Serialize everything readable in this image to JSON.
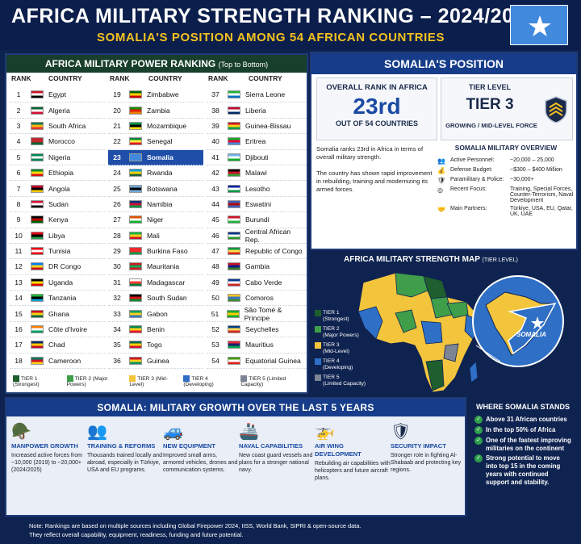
{
  "header": {
    "title": "AFRICA MILITARY STRENGTH RANKING – 2024/2025",
    "subtitle": "SOMALIA'S POSITION AMONG 54 AFRICAN COUNTRIES"
  },
  "ranking": {
    "title": "AFRICA MILITARY POWER RANKING",
    "title_note": "(Top to Bottom)",
    "rank_header": "RANK",
    "country_header": "COUNTRY",
    "columns": [
      [
        {
          "rank": "1",
          "country": "Egypt",
          "colors": [
            "#ce1126",
            "#fff",
            "#000"
          ]
        },
        {
          "rank": "2",
          "country": "Algeria",
          "colors": [
            "#006233",
            "#fff",
            "#d21034"
          ]
        },
        {
          "rank": "3",
          "country": "South Africa",
          "colors": [
            "#007a4d",
            "#ffb612",
            "#de3831"
          ]
        },
        {
          "rank": "4",
          "country": "Morocco",
          "colors": [
            "#c1272d",
            "#c1272d",
            "#006233"
          ]
        },
        {
          "rank": "5",
          "country": "Nigeria",
          "colors": [
            "#008751",
            "#fff",
            "#008751"
          ]
        },
        {
          "rank": "6",
          "country": "Ethiopia",
          "colors": [
            "#078930",
            "#fcdd09",
            "#da121a"
          ]
        },
        {
          "rank": "7",
          "country": "Angola",
          "colors": [
            "#cc092f",
            "#000",
            "#ffcb00"
          ]
        },
        {
          "rank": "8",
          "country": "Sudan",
          "colors": [
            "#d21034",
            "#fff",
            "#000"
          ]
        },
        {
          "rank": "9",
          "country": "Kenya",
          "colors": [
            "#000",
            "#bb0000",
            "#006600"
          ]
        },
        {
          "rank": "10",
          "country": "Libya",
          "colors": [
            "#e70013",
            "#000",
            "#239e46"
          ]
        },
        {
          "rank": "11",
          "country": "Tunisia",
          "colors": [
            "#e70013",
            "#fff",
            "#e70013"
          ]
        },
        {
          "rank": "12",
          "country": "DR Congo",
          "colors": [
            "#007fff",
            "#f7d618",
            "#ce1021"
          ]
        },
        {
          "rank": "13",
          "country": "Uganda",
          "colors": [
            "#000",
            "#fcdc04",
            "#d90000"
          ]
        },
        {
          "rank": "14",
          "country": "Tanzania",
          "colors": [
            "#1eb53a",
            "#000",
            "#00a3dd"
          ]
        },
        {
          "rank": "15",
          "country": "Ghana",
          "colors": [
            "#ce1126",
            "#fcd116",
            "#006b3f"
          ]
        },
        {
          "rank": "16",
          "country": "Côte d'Ivoire",
          "colors": [
            "#f77f00",
            "#fff",
            "#009e60"
          ]
        },
        {
          "rank": "17",
          "country": "Chad",
          "colors": [
            "#002664",
            "#fecb00",
            "#c60c30"
          ]
        },
        {
          "rank": "18",
          "country": "Cameroon",
          "colors": [
            "#007a5e",
            "#ce1126",
            "#fcd116"
          ]
        }
      ],
      [
        {
          "rank": "19",
          "country": "Zimbabwe",
          "colors": [
            "#006400",
            "#ffd200",
            "#d40000"
          ]
        },
        {
          "rank": "20",
          "country": "Zambia",
          "colors": [
            "#198a00",
            "#de2010",
            "#ef7d00"
          ]
        },
        {
          "rank": "21",
          "country": "Mozambique",
          "colors": [
            "#009a44",
            "#000",
            "#fce100"
          ]
        },
        {
          "rank": "22",
          "country": "Senegal",
          "colors": [
            "#00853f",
            "#fdef42",
            "#e31b23"
          ]
        },
        {
          "rank": "23",
          "country": "Somalia",
          "colors": [
            "#4189dd",
            "#4189dd",
            "#4189dd"
          ],
          "highlight": true
        },
        {
          "rank": "24",
          "country": "Rwanda",
          "colors": [
            "#00a1de",
            "#fad201",
            "#20603d"
          ]
        },
        {
          "rank": "25",
          "country": "Botswana",
          "colors": [
            "#75aadb",
            "#000",
            "#75aadb"
          ]
        },
        {
          "rank": "26",
          "country": "Namibia",
          "colors": [
            "#003580",
            "#d21034",
            "#009543"
          ]
        },
        {
          "rank": "27",
          "country": "Niger",
          "colors": [
            "#e05206",
            "#fff",
            "#0db02b"
          ]
        },
        {
          "rank": "28",
          "country": "Mali",
          "colors": [
            "#14b53a",
            "#fcd116",
            "#ce1126"
          ]
        },
        {
          "rank": "29",
          "country": "Burkina Faso",
          "colors": [
            "#ef2b2d",
            "#ef2b2d",
            "#009e49"
          ]
        },
        {
          "rank": "30",
          "country": "Mauritania",
          "colors": [
            "#d01c1f",
            "#00a95c",
            "#d01c1f"
          ]
        },
        {
          "rank": "31",
          "country": "Madagascar",
          "colors": [
            "#fff",
            "#fc3d32",
            "#007e3a"
          ]
        },
        {
          "rank": "32",
          "country": "South Sudan",
          "colors": [
            "#000",
            "#da121a",
            "#078930"
          ]
        },
        {
          "rank": "33",
          "country": "Gabon",
          "colors": [
            "#009e60",
            "#fcd116",
            "#3a75c4"
          ]
        },
        {
          "rank": "34",
          "country": "Benin",
          "colors": [
            "#008751",
            "#fcd116",
            "#e8112d"
          ]
        },
        {
          "rank": "35",
          "country": "Togo",
          "colors": [
            "#006a4e",
            "#ffce00",
            "#d21034"
          ]
        },
        {
          "rank": "36",
          "country": "Guinea",
          "colors": [
            "#ce1126",
            "#fcd116",
            "#009460"
          ]
        }
      ],
      [
        {
          "rank": "37",
          "country": "Sierra Leone",
          "colors": [
            "#1eb53a",
            "#fff",
            "#0072c6"
          ]
        },
        {
          "rank": "38",
          "country": "Liberia",
          "colors": [
            "#bf0a30",
            "#fff",
            "#002868"
          ]
        },
        {
          "rank": "39",
          "country": "Guinea-Bissau",
          "colors": [
            "#ce1126",
            "#fcd116",
            "#009e49"
          ]
        },
        {
          "rank": "40",
          "country": "Eritrea",
          "colors": [
            "#12ad2b",
            "#ea0437",
            "#4189dd"
          ]
        },
        {
          "rank": "41",
          "country": "Djibouti",
          "colors": [
            "#6ab2e7",
            "#fff",
            "#12ad2b"
          ]
        },
        {
          "rank": "42",
          "country": "Malawi",
          "colors": [
            "#000",
            "#ce1126",
            "#339e35"
          ]
        },
        {
          "rank": "43",
          "country": "Lesotho",
          "colors": [
            "#00209f",
            "#fff",
            "#009543"
          ]
        },
        {
          "rank": "44",
          "country": "Eswatini",
          "colors": [
            "#3e5eb9",
            "#b10c0c",
            "#3e5eb9"
          ]
        },
        {
          "rank": "45",
          "country": "Burundi",
          "colors": [
            "#ce1126",
            "#fff",
            "#1eb53a"
          ]
        },
        {
          "rank": "46",
          "country": "Central African Rep.",
          "colors": [
            "#003082",
            "#fff",
            "#289728"
          ]
        },
        {
          "rank": "47",
          "country": "Republic of Congo",
          "colors": [
            "#009543",
            "#fbde4a",
            "#dc241f"
          ]
        },
        {
          "rank": "48",
          "country": "Gambia",
          "colors": [
            "#ce1126",
            "#0c1c8c",
            "#3a7728"
          ]
        },
        {
          "rank": "49",
          "country": "Cabo Verde",
          "colors": [
            "#003893",
            "#fff",
            "#cf2027"
          ]
        },
        {
          "rank": "50",
          "country": "Comoros",
          "colors": [
            "#ffc61e",
            "#3a75c4",
            "#3d8e33"
          ]
        },
        {
          "rank": "51",
          "country": "São Tomé & Príncipe",
          "colors": [
            "#12ad2b",
            "#ffce00",
            "#12ad2b"
          ]
        },
        {
          "rank": "52",
          "country": "Seychelles",
          "colors": [
            "#003f87",
            "#fcd856",
            "#d62828"
          ]
        },
        {
          "rank": "53",
          "country": "Mauritius",
          "colors": [
            "#ea2839",
            "#1a206d",
            "#00a551"
          ]
        },
        {
          "rank": "54",
          "country": "Equatorial Guinea",
          "colors": [
            "#3e9a00",
            "#fff",
            "#e32118"
          ]
        }
      ]
    ],
    "legend": [
      {
        "label": "TIER 1 (Strongest)",
        "color": "#1e5e2f"
      },
      {
        "label": "TIER 2 (Major Powers)",
        "color": "#3f9e4a"
      },
      {
        "label": "TIER 3 (Mid-Level)",
        "color": "#f2c53d"
      },
      {
        "label": "TIER 4 (Developing)",
        "color": "#2f6fc6"
      },
      {
        "label": "TIER 5 (Limited Capacity)",
        "color": "#7d8594"
      }
    ]
  },
  "position": {
    "title": "SOMALIA'S POSITION",
    "rank_label": "OVERALL RANK IN AFRICA",
    "rank_value": "23rd",
    "rank_sub": "OUT OF 54 COUNTRIES",
    "tier_label": "TIER LEVEL",
    "tier_value": "TIER 3",
    "tier_sub": "GROWING / MID-LEVEL FORCE",
    "desc1": "Somalia ranks 23rd in Africa in terms of overall military strength.",
    "desc2": "The country has shown rapid improvement in rebuilding, training and modernizing its armed forces.",
    "overview_title": "SOMALIA MILITARY OVERVIEW",
    "overview": [
      {
        "icon": "personnel-icon",
        "glyph": "👥",
        "label": "Active Personnel:",
        "value": "~20,000 – 25,000"
      },
      {
        "icon": "budget-icon",
        "glyph": "💰",
        "label": "Defense Budget:",
        "value": "~$300 – $400 Million"
      },
      {
        "icon": "police-icon",
        "glyph": "🛡",
        "label": "Paramilitary & Police:",
        "value": "~30,000+"
      },
      {
        "icon": "focus-icon",
        "glyph": "◎",
        "label": "Recent Focus:",
        "value": "Training, Special Forces, Counter-Terrorism, Naval Development"
      },
      {
        "icon": "handshake-icon",
        "glyph": "🤝",
        "label": "Main Partners:",
        "value": "Türkiye, USA, EU, Qatar, UK, UAE"
      }
    ]
  },
  "map": {
    "title": "AFRICA MILITARY STRENGTH MAP",
    "title_note": "(TIER LEVEL)",
    "legend": [
      {
        "name": "TIER 1",
        "sub": "(Strongest)",
        "color": "#1e5e2f"
      },
      {
        "name": "TIER 2",
        "sub": "(Major Powers)",
        "color": "#3f9e4a"
      },
      {
        "name": "TIER 3",
        "sub": "(Mid-Level)",
        "color": "#f2c53d"
      },
      {
        "name": "TIER 4",
        "sub": "(Developing)",
        "color": "#2f6fc6"
      },
      {
        "name": "TIER 5",
        "sub": "(Limited Capacity)",
        "color": "#7d8594"
      }
    ],
    "somalia_label": "SOMALIA"
  },
  "growth": {
    "title": "SOMALIA: MILITARY GROWTH OVER THE LAST 5 YEARS",
    "items": [
      {
        "name": "manpower",
        "glyph": "🪖",
        "title": "MANPOWER GROWTH",
        "text": "Increased active forces from ~10,000 (2019) to ~20,000+ (2024/2025)"
      },
      {
        "name": "training",
        "glyph": "👥",
        "title": "TRAINING & REFORMS",
        "text": "Thousands trained locally and abroad, especially in Türkiye, USA and EU programs."
      },
      {
        "name": "equipment",
        "glyph": "🚙",
        "title": "NEW EQUIPMENT",
        "text": "Improved small arms, armored vehicles, drones and communication systems."
      },
      {
        "name": "naval",
        "glyph": "🚢",
        "title": "NAVAL CAPABILITIES",
        "text": "New coast guard vessels and plans for a stronger national navy."
      },
      {
        "name": "air-wing",
        "glyph": "🚁",
        "title": "AIR WING DEVELOPMENT",
        "text": "Rebuilding air capabilities with helicopters and future aircraft plans."
      },
      {
        "name": "security",
        "glyph": "🛡",
        "title": "SECURITY IMPACT",
        "text": "Stronger role in fighting Al-Shabaab and protecting key regions."
      }
    ]
  },
  "stands": {
    "title": "WHERE SOMALIA STANDS",
    "items": [
      "Above 31 African countries",
      "In the top 50% of Africa",
      "One of the fastest improving militaries on the continent",
      "Strong potential to move into top 15 in the coming years with continued support and stability."
    ]
  },
  "note": {
    "line1": "Note: Rankings are based on multiple sources including Global Firepower 2024, IISS, World Bank, SIPRI & open-source data.",
    "line2": "They reflect overall capability, equipment, readiness, funding and future potential."
  }
}
